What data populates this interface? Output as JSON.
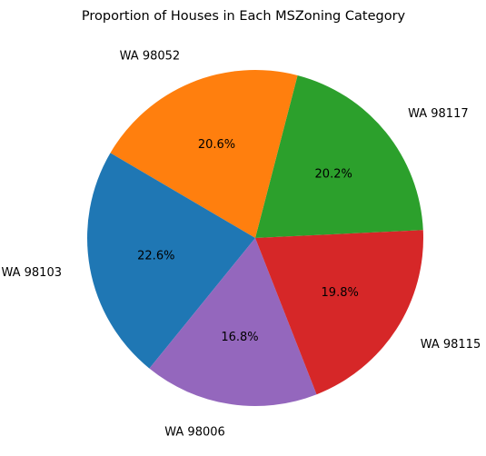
{
  "chart_data": {
    "type": "pie",
    "title": "Proportion of Houses in Each MSZoning Category",
    "slices": [
      {
        "label": "WA 98117",
        "percent": 20.2,
        "percent_label": "20.2%",
        "color": "#2ca02c"
      },
      {
        "label": "WA 98052",
        "percent": 20.6,
        "percent_label": "20.6%",
        "color": "#ff7f0e"
      },
      {
        "label": "WA 98103",
        "percent": 22.6,
        "percent_label": "22.6%",
        "color": "#1f77b4"
      },
      {
        "label": "WA 98006",
        "percent": 16.8,
        "percent_label": "16.8%",
        "color": "#9467bd"
      },
      {
        "label": "WA 98115",
        "percent": 19.8,
        "percent_label": "19.8%",
        "color": "#d62728"
      }
    ]
  }
}
